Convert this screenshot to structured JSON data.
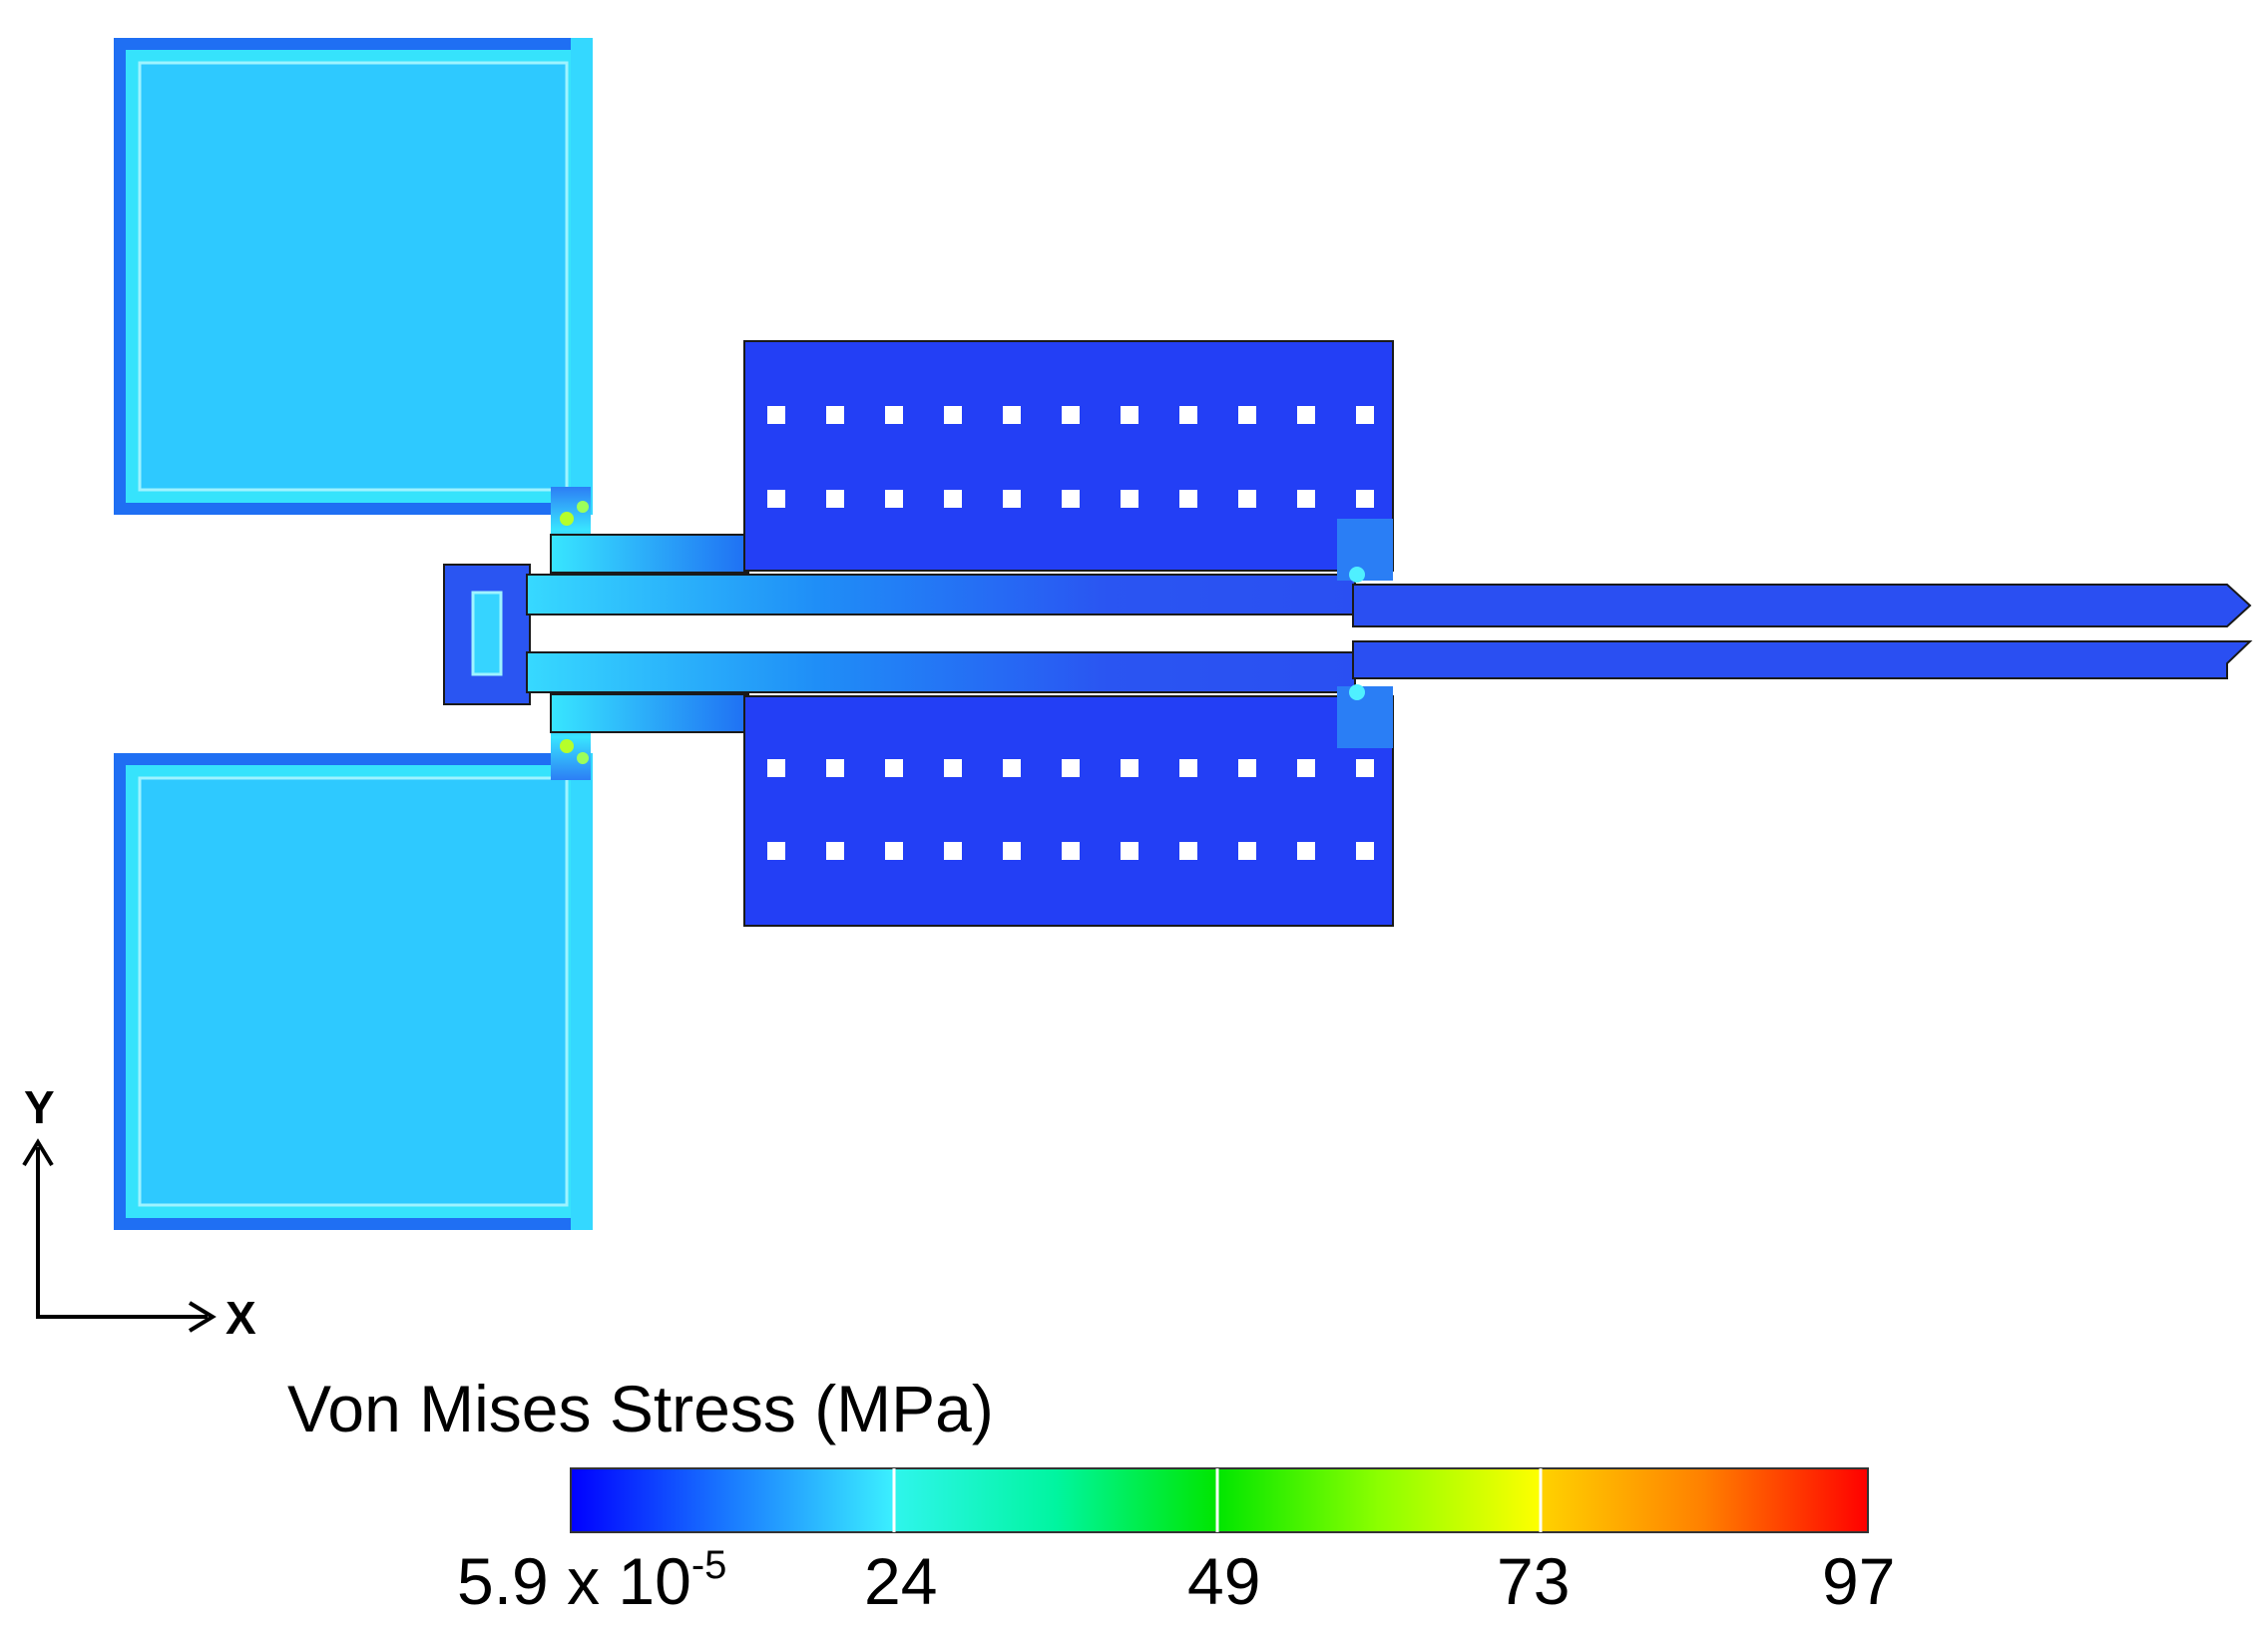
{
  "axes": {
    "x_label": "X",
    "y_label": "Y"
  },
  "legend": {
    "title": "Von Mises Stress (MPa)",
    "min_base": "5.9 x 10",
    "min_exponent": "-5",
    "ticks": [
      "24",
      "49",
      "73",
      "97"
    ],
    "gradient_colors": [
      "#0000ff",
      "#00a8ff",
      "#3bf0ff",
      "#00ff9a",
      "#00e600",
      "#b5ff00",
      "#ffff00",
      "#ff9a00",
      "#ff0000"
    ]
  },
  "colors": {
    "pad_fill": "#2ec9ff",
    "pad_frame": "#36e3fc",
    "pad_edge": "#1f6ff3",
    "comb_fill": "#233ff5",
    "beam_fill": "#2a4ff2",
    "outline": "#1a1a1a",
    "hole": "#ffffff",
    "hot_spot": "#b6ff2a"
  }
}
